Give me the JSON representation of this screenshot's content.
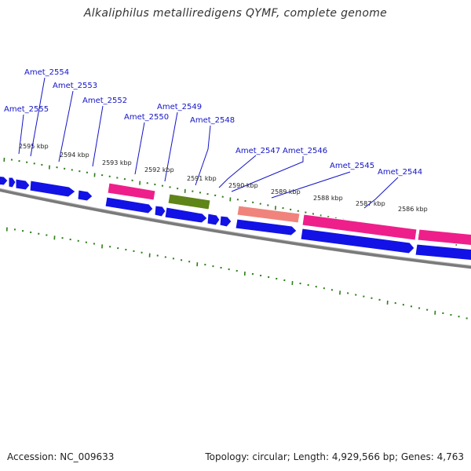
{
  "title": "Alkaliphilus metalliredigens QYMF, complete genome",
  "footer": {
    "accession": "Accession: NC_009633",
    "summary": "Topology: circular; Length: 4,929,566 bp; Genes: 4,763"
  },
  "colors": {
    "gene_blue": "#1212e6",
    "gene_magenta": "#ee1f8a",
    "gene_olive": "#5f8418",
    "gene_salmon": "#f0847c",
    "backbone_gray": "#777777",
    "tick_green": "#2d7d1a",
    "label_blue": "#1414c8"
  },
  "gene_labels": [
    "Amet_2555",
    "Amet_2554",
    "Amet_2553",
    "Amet_2552",
    "Amet_2550",
    "Amet_2549",
    "Amet_2548",
    "Amet_2547",
    "Amet_2546",
    "Amet_2545",
    "Amet_2544"
  ],
  "kbp_labels": [
    "2595 kbp",
    "2594 kbp",
    "2593 kbp",
    "2592 kbp",
    "2591 kbp",
    "2590 kbp",
    "2589 kbp",
    "2588 kbp",
    "2587 kbp",
    "2586 kbp"
  ]
}
